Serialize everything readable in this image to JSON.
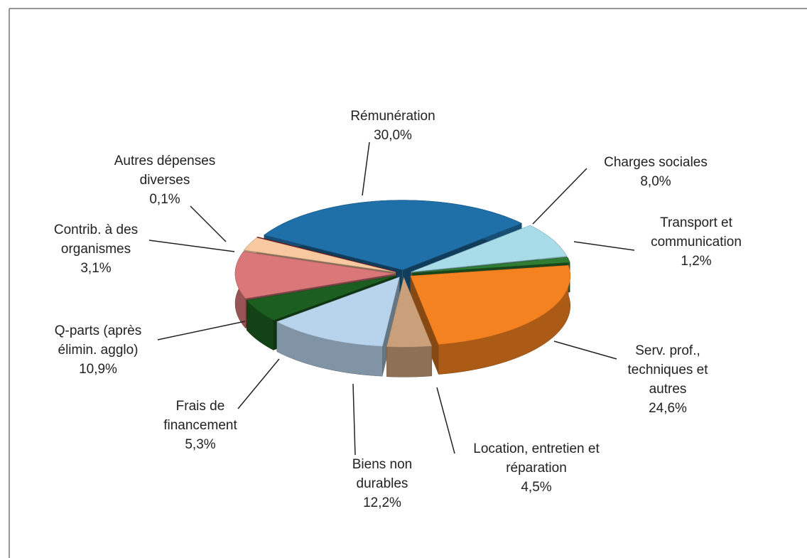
{
  "chart_data": {
    "type": "pie3d",
    "categories": [
      "Rémunération",
      "Charges sociales",
      "Transport et communication",
      "Serv. prof., techniques et autres",
      "Location, entretien et réparation",
      "Biens non durables",
      "Frais de financement",
      "Q-parts (après élimin. agglo)",
      "Contrib. à des organismes",
      "Autres dépenses diverses"
    ],
    "values": [
      30.0,
      8.0,
      1.2,
      24.6,
      4.5,
      12.2,
      5.3,
      10.9,
      3.1,
      0.1
    ],
    "value_labels": [
      "30,0%",
      "8,0%",
      "1,2%",
      "24,6%",
      "4,5%",
      "12,2%",
      "5,3%",
      "10,9%",
      "3,1%",
      "0,1%"
    ],
    "colors": [
      "#1f6fa8",
      "#a8dce8",
      "#2e7d32",
      "#f58220",
      "#c9a07a",
      "#b8d4ec",
      "#1b5e20",
      "#d97779",
      "#f8c9a0",
      "#8b1a1a"
    ]
  }
}
